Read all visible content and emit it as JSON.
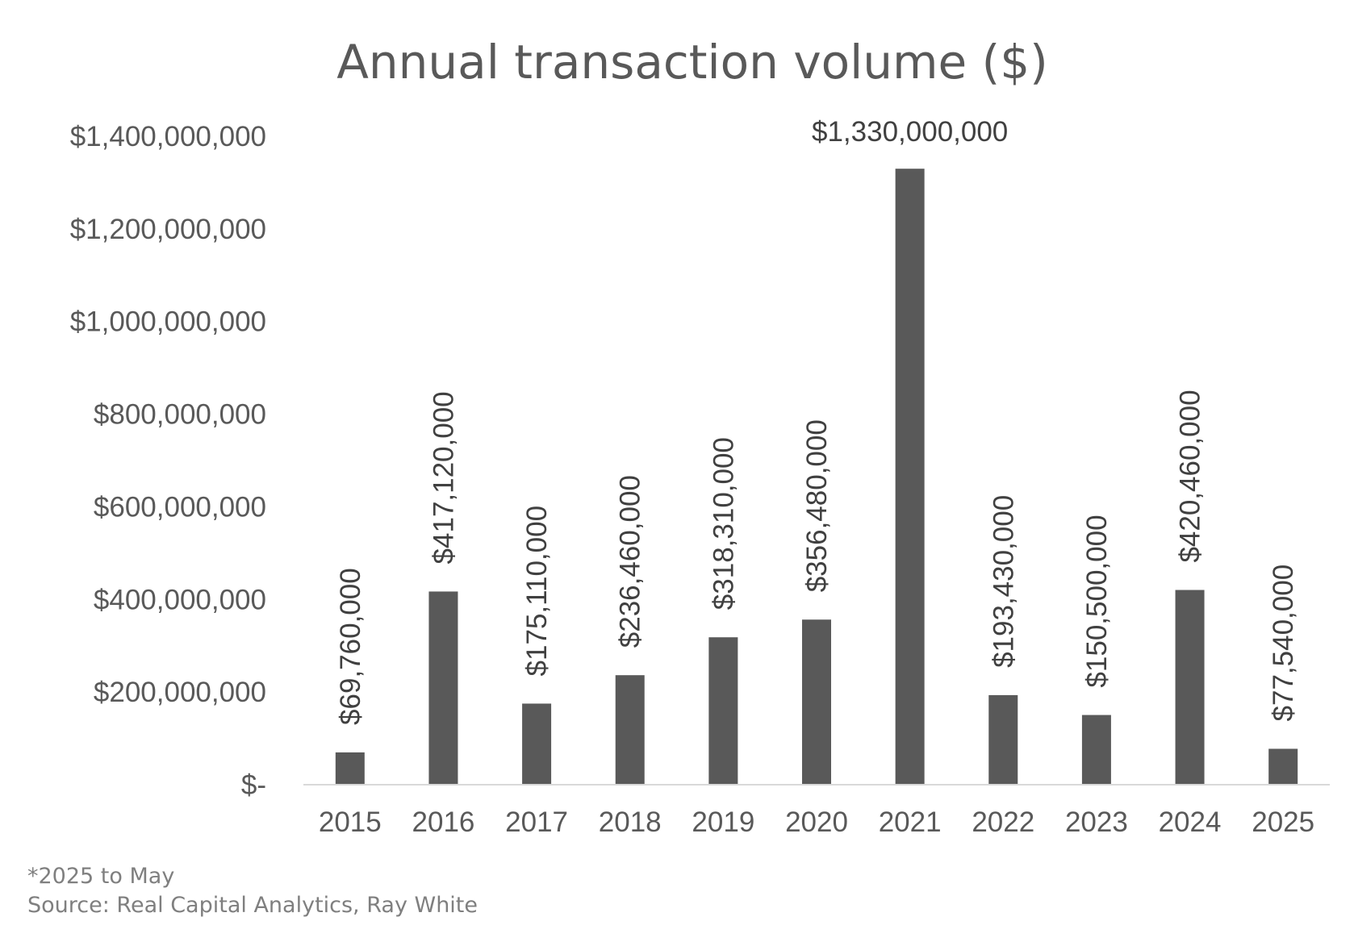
{
  "chart_data": {
    "type": "bar",
    "title": "Annual transaction volume ($)",
    "xlabel": "",
    "ylabel": "",
    "categories": [
      "2015",
      "2016",
      "2017",
      "2018",
      "2019",
      "2020",
      "2021",
      "2022",
      "2023",
      "2024",
      "2025"
    ],
    "values": [
      69760000,
      417120000,
      175110000,
      236460000,
      318310000,
      356480000,
      1330000000,
      193430000,
      150500000,
      420460000,
      77540000
    ],
    "data_labels": [
      "$69,760,000",
      "$417,120,000",
      "$175,110,000",
      "$236,460,000",
      "$318,310,000",
      "$356,480,000",
      "$1,330,000,000",
      "$193,430,000",
      "$150,500,000",
      "$420,460,000",
      "$77,540,000"
    ],
    "ylim": [
      0,
      1400000000
    ],
    "yticks": [
      0,
      200000000,
      400000000,
      600000000,
      800000000,
      1000000000,
      1200000000,
      1400000000
    ],
    "ytick_labels": [
      "$-",
      "$200,000,000",
      "$400,000,000",
      "$600,000,000",
      "$800,000,000",
      "$1,000,000,000",
      "$1,200,000,000",
      "$1,400,000,000"
    ],
    "grid": false,
    "legend": "none",
    "bar_color": "#595959",
    "label_rotation": "vertical except the largest value"
  },
  "notes": {
    "footnote": "*2025 to May",
    "source": "Source: Real Capital Analytics, Ray White"
  },
  "colors": {
    "bar": "#595959",
    "text": "#595959",
    "axis_line": "#d9d9d9",
    "note": "#7f7f7f"
  }
}
